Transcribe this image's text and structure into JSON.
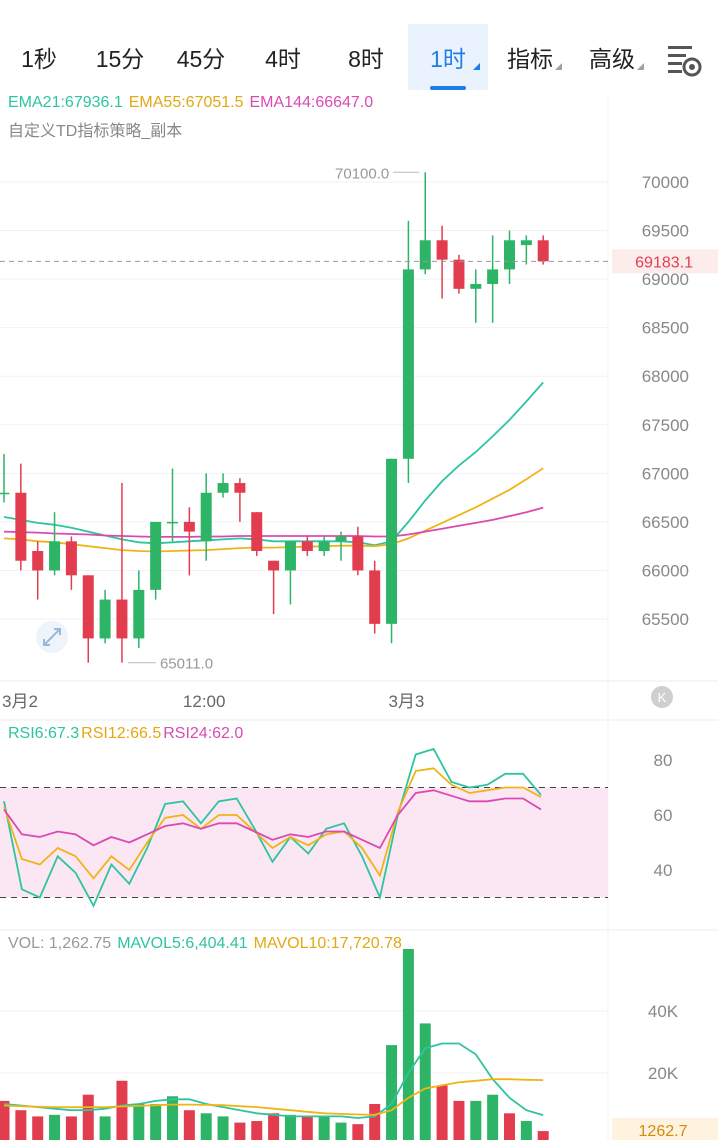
{
  "tabs": [
    {
      "label": "1秒",
      "active": false,
      "dropdown": false
    },
    {
      "label": "15分",
      "active": false,
      "dropdown": false
    },
    {
      "label": "45分",
      "active": false,
      "dropdown": false
    },
    {
      "label": "4时",
      "active": false,
      "dropdown": false
    },
    {
      "label": "8时",
      "active": false,
      "dropdown": false
    },
    {
      "label": "1时",
      "active": true,
      "dropdown": true
    },
    {
      "label": "指标",
      "active": false,
      "dropdown": true
    },
    {
      "label": "高级",
      "active": false,
      "dropdown": true
    }
  ],
  "settings_icon": "chart-settings-icon",
  "colors": {
    "up": "#2eb466",
    "down": "#e23d4f",
    "ema21": "#2ec4a0",
    "ema55": "#f0b418",
    "ema144": "#d94bb3",
    "accent": "#1f7de6"
  },
  "main_legend": {
    "ema21": "EMA21:67936.1",
    "ema55": "EMA55:67051.5",
    "ema144": "EMA144:66647.0",
    "strategy": "自定义TD指标策略_副本"
  },
  "rsi_legend": {
    "rsi6": "RSI6:67.3",
    "rsi12": "RSI12:66.5",
    "rsi24": "RSI24:62.0"
  },
  "vol_legend": {
    "vol": "VOL: 1,262.75",
    "mavol5": "MAVOL5:6,404.41",
    "mavol10": "MAVOL10:17,720.78"
  },
  "chart_data": [
    {
      "type": "candlestick",
      "title": "",
      "x_labels": [
        {
          "index": 0,
          "text": "3月2"
        },
        {
          "index": 12,
          "text": "12:00"
        },
        {
          "index": 24,
          "text": "3月3"
        }
      ],
      "y_ticks": [
        65500,
        66000,
        66500,
        67000,
        67500,
        68000,
        68500,
        69000,
        69500,
        70000
      ],
      "ylim": [
        65000,
        70300
      ],
      "last_price": 69183.1,
      "last_price_label": "69183.1",
      "high_label": "70100.0",
      "low_label": "65011.0",
      "candles": [
        {
          "o": 66800,
          "h": 67200,
          "l": 66700,
          "c": 66800
        },
        {
          "o": 66800,
          "h": 67100,
          "l": 66000,
          "c": 66100
        },
        {
          "o": 66200,
          "h": 66300,
          "l": 65700,
          "c": 66000
        },
        {
          "o": 66000,
          "h": 66600,
          "l": 65950,
          "c": 66300
        },
        {
          "o": 66300,
          "h": 66350,
          "l": 65800,
          "c": 65950
        },
        {
          "o": 65950,
          "h": 65950,
          "l": 65050,
          "c": 65300
        },
        {
          "o": 65300,
          "h": 65800,
          "l": 65250,
          "c": 65700
        },
        {
          "o": 65700,
          "h": 66900,
          "l": 65050,
          "c": 65300
        },
        {
          "o": 65300,
          "h": 66000,
          "l": 65200,
          "c": 65800
        },
        {
          "o": 65800,
          "h": 66500,
          "l": 65700,
          "c": 66500
        },
        {
          "o": 66500,
          "h": 67050,
          "l": 66300,
          "c": 66500
        },
        {
          "o": 66500,
          "h": 66650,
          "l": 65950,
          "c": 66400
        },
        {
          "o": 66300,
          "h": 67000,
          "l": 66100,
          "c": 66800
        },
        {
          "o": 66800,
          "h": 67000,
          "l": 66750,
          "c": 66900
        },
        {
          "o": 66900,
          "h": 66950,
          "l": 66500,
          "c": 66800
        },
        {
          "o": 66600,
          "h": 66600,
          "l": 66150,
          "c": 66200
        },
        {
          "o": 66100,
          "h": 66100,
          "l": 65550,
          "c": 66000
        },
        {
          "o": 66000,
          "h": 66300,
          "l": 65650,
          "c": 66300
        },
        {
          "o": 66300,
          "h": 66350,
          "l": 66150,
          "c": 66200
        },
        {
          "o": 66200,
          "h": 66350,
          "l": 66150,
          "c": 66300
        },
        {
          "o": 66300,
          "h": 66400,
          "l": 66100,
          "c": 66350
        },
        {
          "o": 66350,
          "h": 66450,
          "l": 65950,
          "c": 66000
        },
        {
          "o": 66000,
          "h": 66100,
          "l": 65350,
          "c": 65450
        },
        {
          "o": 65450,
          "h": 67150,
          "l": 65250,
          "c": 67150
        },
        {
          "o": 67150,
          "h": 69600,
          "l": 66900,
          "c": 69100
        },
        {
          "o": 69100,
          "h": 70100,
          "l": 69050,
          "c": 69400
        },
        {
          "o": 69400,
          "h": 69550,
          "l": 68800,
          "c": 69200
        },
        {
          "o": 69200,
          "h": 69250,
          "l": 68850,
          "c": 68900
        },
        {
          "o": 68900,
          "h": 69100,
          "l": 68550,
          "c": 68950
        },
        {
          "o": 68950,
          "h": 69450,
          "l": 68550,
          "c": 69100
        },
        {
          "o": 69100,
          "h": 69500,
          "l": 68950,
          "c": 69400
        },
        {
          "o": 69350,
          "h": 69450,
          "l": 69150,
          "c": 69400
        },
        {
          "o": 69400,
          "h": 69450,
          "l": 69150,
          "c": 69183.1
        }
      ],
      "series": [
        {
          "name": "EMA21",
          "values": [
            66550,
            66520,
            66490,
            66470,
            66440,
            66400,
            66360,
            66320,
            66290,
            66280,
            66290,
            66300,
            66310,
            66320,
            66330,
            66320,
            66300,
            66300,
            66300,
            66300,
            66300,
            66290,
            66260,
            66300,
            66500,
            66720,
            66920,
            67080,
            67220,
            67380,
            67550,
            67740,
            67936.1
          ]
        },
        {
          "name": "EMA55",
          "values": [
            66330,
            66320,
            66300,
            66290,
            66270,
            66250,
            66230,
            66210,
            66200,
            66195,
            66200,
            66205,
            66210,
            66220,
            66230,
            66235,
            66235,
            66240,
            66245,
            66250,
            66255,
            66255,
            66250,
            66270,
            66330,
            66410,
            66490,
            66570,
            66650,
            66740,
            66830,
            66940,
            67051.5
          ]
        },
        {
          "name": "EMA144",
          "values": [
            66400,
            66395,
            66390,
            66380,
            66375,
            66370,
            66360,
            66355,
            66350,
            66345,
            66345,
            66345,
            66350,
            66350,
            66355,
            66355,
            66355,
            66355,
            66355,
            66355,
            66355,
            66355,
            66350,
            66350,
            66370,
            66400,
            66430,
            66460,
            66490,
            66520,
            66560,
            66600,
            66647.0
          ]
        }
      ]
    },
    {
      "type": "line",
      "title": "",
      "y_ticks": [
        40,
        60,
        80
      ],
      "ylim": [
        22,
        90
      ],
      "band": [
        30,
        70
      ],
      "series": [
        {
          "name": "RSI6",
          "values": [
            65,
            33,
            30,
            45,
            39,
            27,
            42,
            35,
            48,
            64,
            65,
            57,
            65,
            66,
            55,
            43,
            52,
            46,
            55,
            57,
            45,
            30,
            60,
            82,
            84,
            72,
            70,
            71,
            75,
            75,
            67.3
          ]
        },
        {
          "name": "RSI12",
          "values": [
            63,
            44,
            42,
            48,
            45,
            37,
            45,
            40,
            50,
            59,
            60,
            55,
            60,
            60,
            54,
            48,
            52,
            49,
            53,
            54,
            48,
            38,
            61,
            76,
            77,
            71,
            68,
            69,
            70,
            70,
            66.5
          ]
        },
        {
          "name": "RSI24",
          "values": [
            62,
            53,
            52,
            54,
            53,
            49,
            52,
            50,
            53,
            56,
            57,
            55,
            57,
            57,
            54,
            51,
            53,
            52,
            54,
            54,
            51,
            48,
            60,
            68,
            69,
            67,
            65,
            65,
            66,
            66,
            62.0
          ]
        }
      ]
    },
    {
      "type": "bar",
      "title": "",
      "y_ticks": [
        {
          "v": 20000,
          "label": "20K"
        },
        {
          "v": 40000,
          "label": "40K"
        }
      ],
      "ylim": [
        0,
        60000
      ],
      "last_value_label": "1262.7",
      "bars": [
        {
          "v": 11000,
          "up": false
        },
        {
          "v": 8000,
          "up": false
        },
        {
          "v": 6000,
          "up": false
        },
        {
          "v": 6500,
          "up": true
        },
        {
          "v": 6000,
          "up": false
        },
        {
          "v": 13000,
          "up": false
        },
        {
          "v": 6000,
          "up": true
        },
        {
          "v": 17500,
          "up": false
        },
        {
          "v": 10000,
          "up": true
        },
        {
          "v": 10000,
          "up": true
        },
        {
          "v": 12500,
          "up": true
        },
        {
          "v": 8000,
          "up": false
        },
        {
          "v": 7000,
          "up": true
        },
        {
          "v": 6000,
          "up": true
        },
        {
          "v": 4000,
          "up": false
        },
        {
          "v": 4500,
          "up": false
        },
        {
          "v": 7000,
          "up": false
        },
        {
          "v": 6500,
          "up": true
        },
        {
          "v": 6000,
          "up": false
        },
        {
          "v": 6000,
          "up": true
        },
        {
          "v": 4000,
          "up": true
        },
        {
          "v": 3500,
          "up": false
        },
        {
          "v": 10000,
          "up": false
        },
        {
          "v": 29000,
          "up": true
        },
        {
          "v": 60000,
          "up": true
        },
        {
          "v": 36000,
          "up": true
        },
        {
          "v": 16000,
          "up": false
        },
        {
          "v": 11000,
          "up": false
        },
        {
          "v": 11000,
          "up": true
        },
        {
          "v": 13000,
          "up": true
        },
        {
          "v": 7000,
          "up": false
        },
        {
          "v": 4500,
          "up": true
        },
        {
          "v": 1262.75,
          "up": false
        }
      ],
      "series": [
        {
          "name": "MAVOL5",
          "values": [
            10000,
            9500,
            9000,
            8500,
            8000,
            8000,
            8500,
            9500,
            10000,
            11000,
            11500,
            11500,
            10000,
            9000,
            8000,
            7000,
            6500,
            6000,
            6000,
            6000,
            6000,
            5500,
            6000,
            10000,
            20000,
            28000,
            29500,
            29500,
            26000,
            18000,
            12000,
            8000,
            6404.41
          ]
        },
        {
          "name": "MAVOL10",
          "values": [
            9500,
            9300,
            9100,
            9000,
            9000,
            9000,
            9000,
            9200,
            9400,
            9600,
            9800,
            9800,
            9700,
            9600,
            9300,
            9000,
            8500,
            8000,
            7500,
            7000,
            6800,
            6600,
            6500,
            8000,
            12000,
            15000,
            16000,
            17000,
            17500,
            18000,
            18000,
            17800,
            17720.78
          ]
        }
      ]
    }
  ]
}
